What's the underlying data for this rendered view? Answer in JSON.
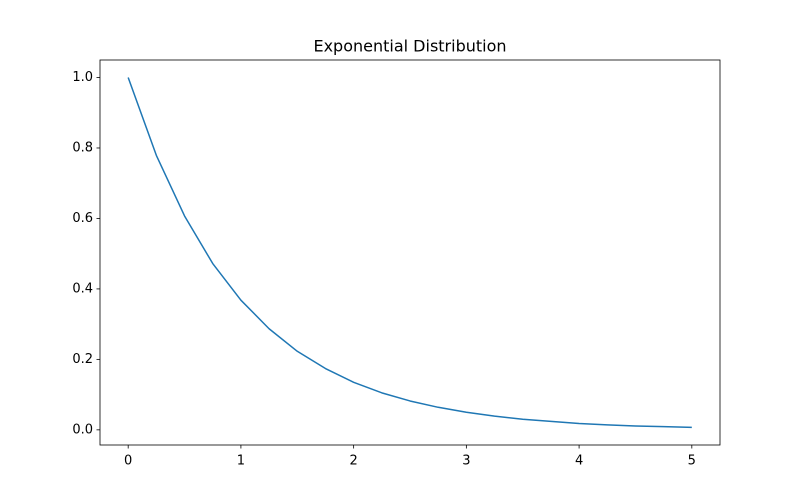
{
  "chart_data": {
    "type": "line",
    "title": "Exponential Distribution",
    "x": [
      0,
      0.25,
      0.5,
      0.75,
      1,
      1.25,
      1.5,
      1.75,
      2,
      2.25,
      2.5,
      2.75,
      3,
      3.25,
      3.5,
      3.75,
      4,
      4.25,
      4.5,
      4.75,
      5
    ],
    "values": [
      1,
      0.779,
      0.607,
      0.472,
      0.368,
      0.287,
      0.223,
      0.174,
      0.135,
      0.105,
      0.082,
      0.064,
      0.05,
      0.039,
      0.03,
      0.024,
      0.018,
      0.014,
      0.011,
      0.009,
      0.007
    ],
    "color": "#1f77b4",
    "xlim": [
      -0.25,
      5.25
    ],
    "xticks": [
      0,
      1,
      2,
      3,
      4,
      5
    ],
    "ylim": [
      -0.043,
      1.0497
    ],
    "yticks": [
      {
        "value": 0,
        "label": "0.0"
      },
      0.2,
      0.4,
      0.6,
      0.8,
      {
        "value": 1,
        "label": "1.0"
      }
    ],
    "grid": false
  }
}
